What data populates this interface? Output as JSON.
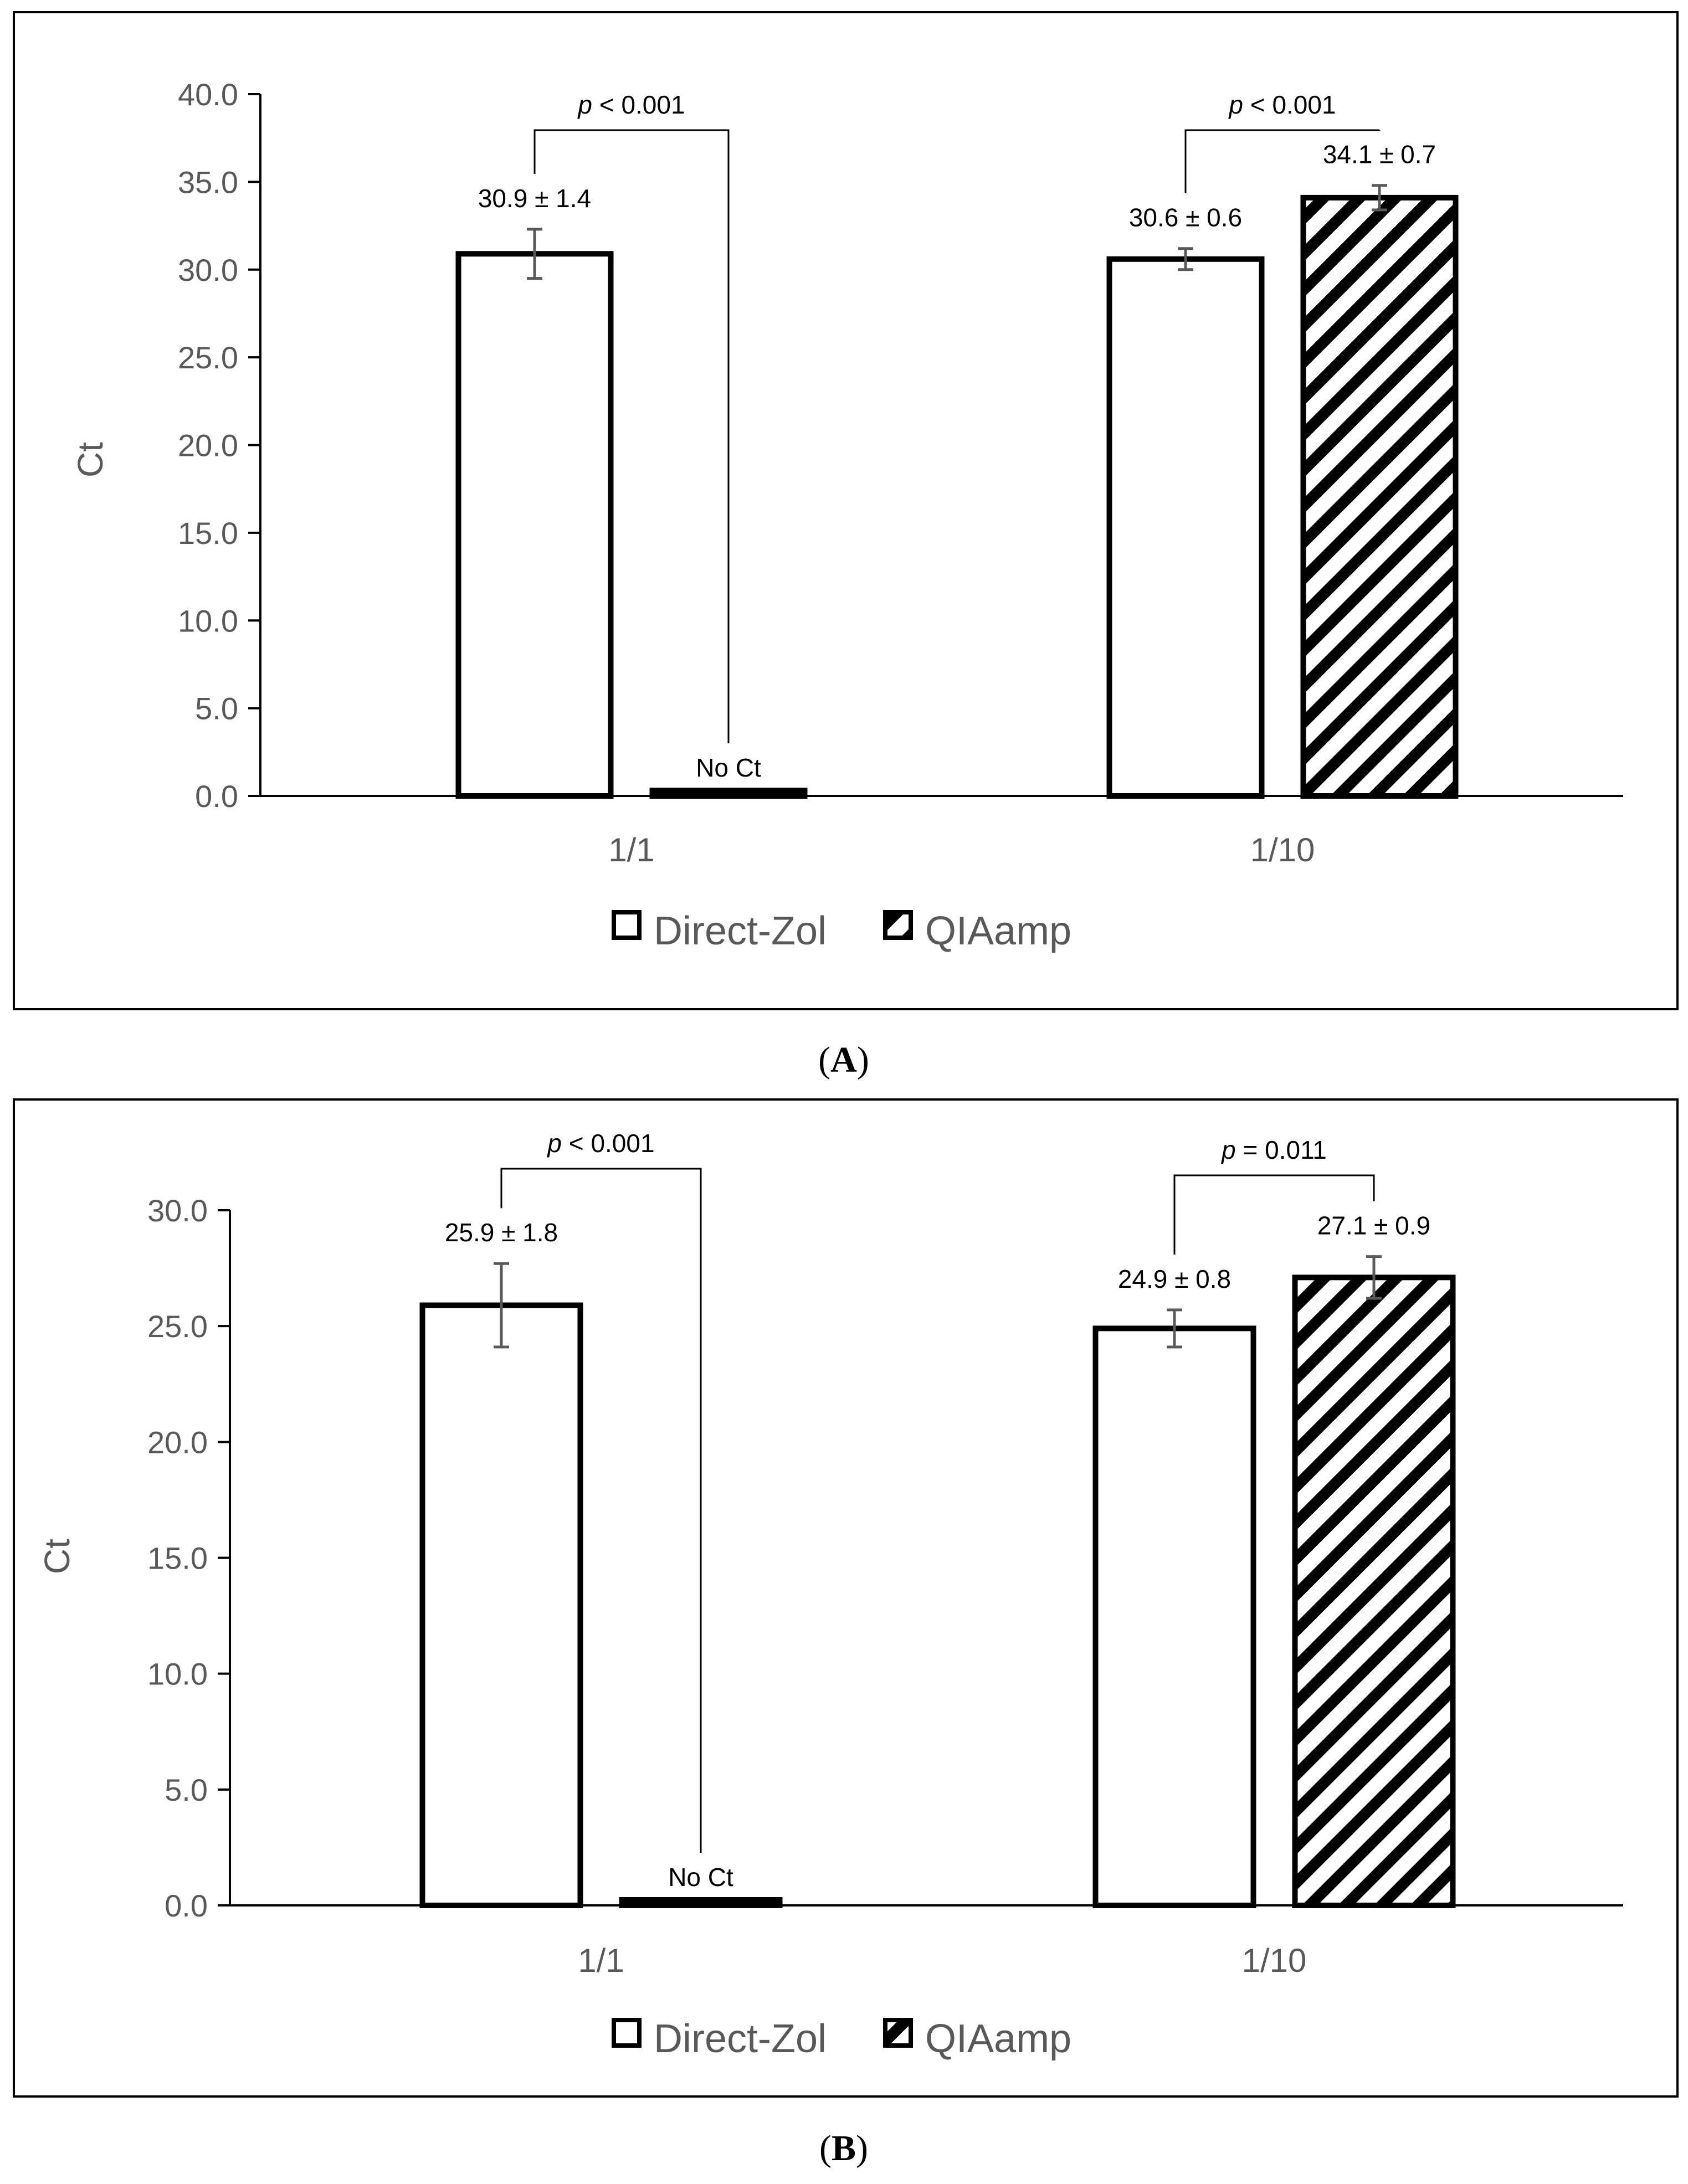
{
  "chart_data": [
    {
      "type": "bar",
      "panel": "A",
      "ylabel": "Ct",
      "ylim": [
        0,
        40
      ],
      "yticks": [
        "0.0",
        "5.0",
        "10.0",
        "15.0",
        "20.0",
        "25.0",
        "30.0",
        "35.0",
        "40.0"
      ],
      "categories": [
        "1/1",
        "1/10"
      ],
      "series": [
        {
          "name": "Direct-Zol",
          "values": [
            30.9,
            30.6
          ],
          "errors": [
            1.4,
            0.6
          ],
          "labels": [
            "30.9 ± 1.4",
            "30.6 ± 0.6"
          ]
        },
        {
          "name": "QIAamp",
          "values": [
            0,
            34.1
          ],
          "errors": [
            0,
            0.7
          ],
          "labels": [
            "No Ct",
            "34.1 ± 0.7"
          ]
        }
      ],
      "significance": [
        {
          "category": 0,
          "p": "p",
          "rest": " < 0.001"
        },
        {
          "category": 1,
          "p": "p",
          "rest": " < 0.001"
        }
      ],
      "legend": [
        "Direct-Zol",
        "QIAamp"
      ],
      "caption": {
        "open": "(",
        "letter": "A",
        "close": ")"
      }
    },
    {
      "type": "bar",
      "panel": "B",
      "ylabel": "Ct",
      "ylim": [
        0,
        30
      ],
      "yticks": [
        "0.0",
        "5.0",
        "10.0",
        "15.0",
        "20.0",
        "25.0",
        "30.0"
      ],
      "categories": [
        "1/1",
        "1/10"
      ],
      "series": [
        {
          "name": "Direct-Zol",
          "values": [
            25.9,
            24.9
          ],
          "errors": [
            1.8,
            0.8
          ],
          "labels": [
            "25.9 ± 1.8",
            "24.9 ± 0.8"
          ]
        },
        {
          "name": "QIAamp",
          "values": [
            0,
            27.1
          ],
          "errors": [
            0,
            0.9
          ],
          "labels": [
            "No Ct",
            "27.1 ± 0.9"
          ]
        }
      ],
      "significance": [
        {
          "category": 0,
          "p": "p",
          "rest": " < 0.001"
        },
        {
          "category": 1,
          "p": "p",
          "rest": " = 0.011"
        }
      ],
      "legend": [
        "Direct-Zol",
        "QIAamp"
      ],
      "caption": {
        "open": "(",
        "letter": "B",
        "close": ")"
      }
    }
  ],
  "colors": {
    "bar_stroke": "#000000",
    "axis": "#000000",
    "text_gray": "#595959",
    "error_bar": "#595959",
    "fill": "#ffffff"
  }
}
